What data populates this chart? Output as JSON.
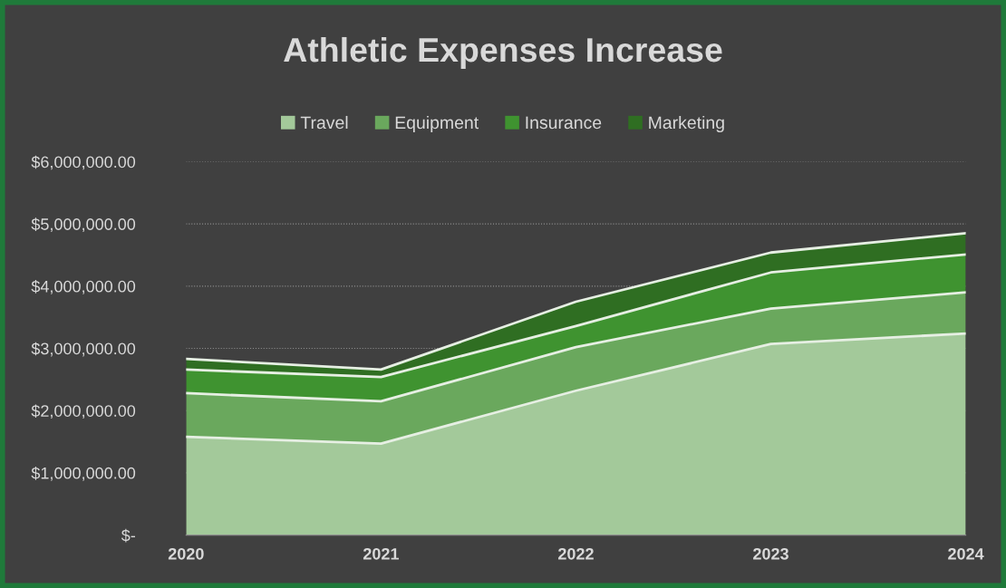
{
  "chart_data": {
    "type": "area",
    "title": "Athletic Expenses Increase",
    "stacked": true,
    "categories": [
      "2020",
      "2021",
      "2022",
      "2023",
      "2024"
    ],
    "series": [
      {
        "name": "Travel",
        "color": "#a3c99a",
        "values": [
          1580000,
          1470000,
          2320000,
          3070000,
          3240000
        ]
      },
      {
        "name": "Equipment",
        "color": "#6aa85d",
        "values": [
          700000,
          680000,
          700000,
          570000,
          660000
        ]
      },
      {
        "name": "Insurance",
        "color": "#3f9330",
        "values": [
          380000,
          390000,
          340000,
          580000,
          610000
        ]
      },
      {
        "name": "Marketing",
        "color": "#2f6e22",
        "values": [
          170000,
          120000,
          390000,
          320000,
          340000
        ]
      }
    ],
    "ylim": [
      0,
      6000000
    ],
    "yticks": [
      {
        "value": 0,
        "label": "$-"
      },
      {
        "value": 1000000,
        "label": "$1,000,000.00"
      },
      {
        "value": 2000000,
        "label": "$2,000,000.00"
      },
      {
        "value": 3000000,
        "label": "$3,000,000.00"
      },
      {
        "value": 4000000,
        "label": "$4,000,000.00"
      },
      {
        "value": 5000000,
        "label": "$5,000,000.00"
      },
      {
        "value": 6000000,
        "label": "$6,000,000.00"
      }
    ],
    "grid": "y",
    "legend": "top"
  }
}
